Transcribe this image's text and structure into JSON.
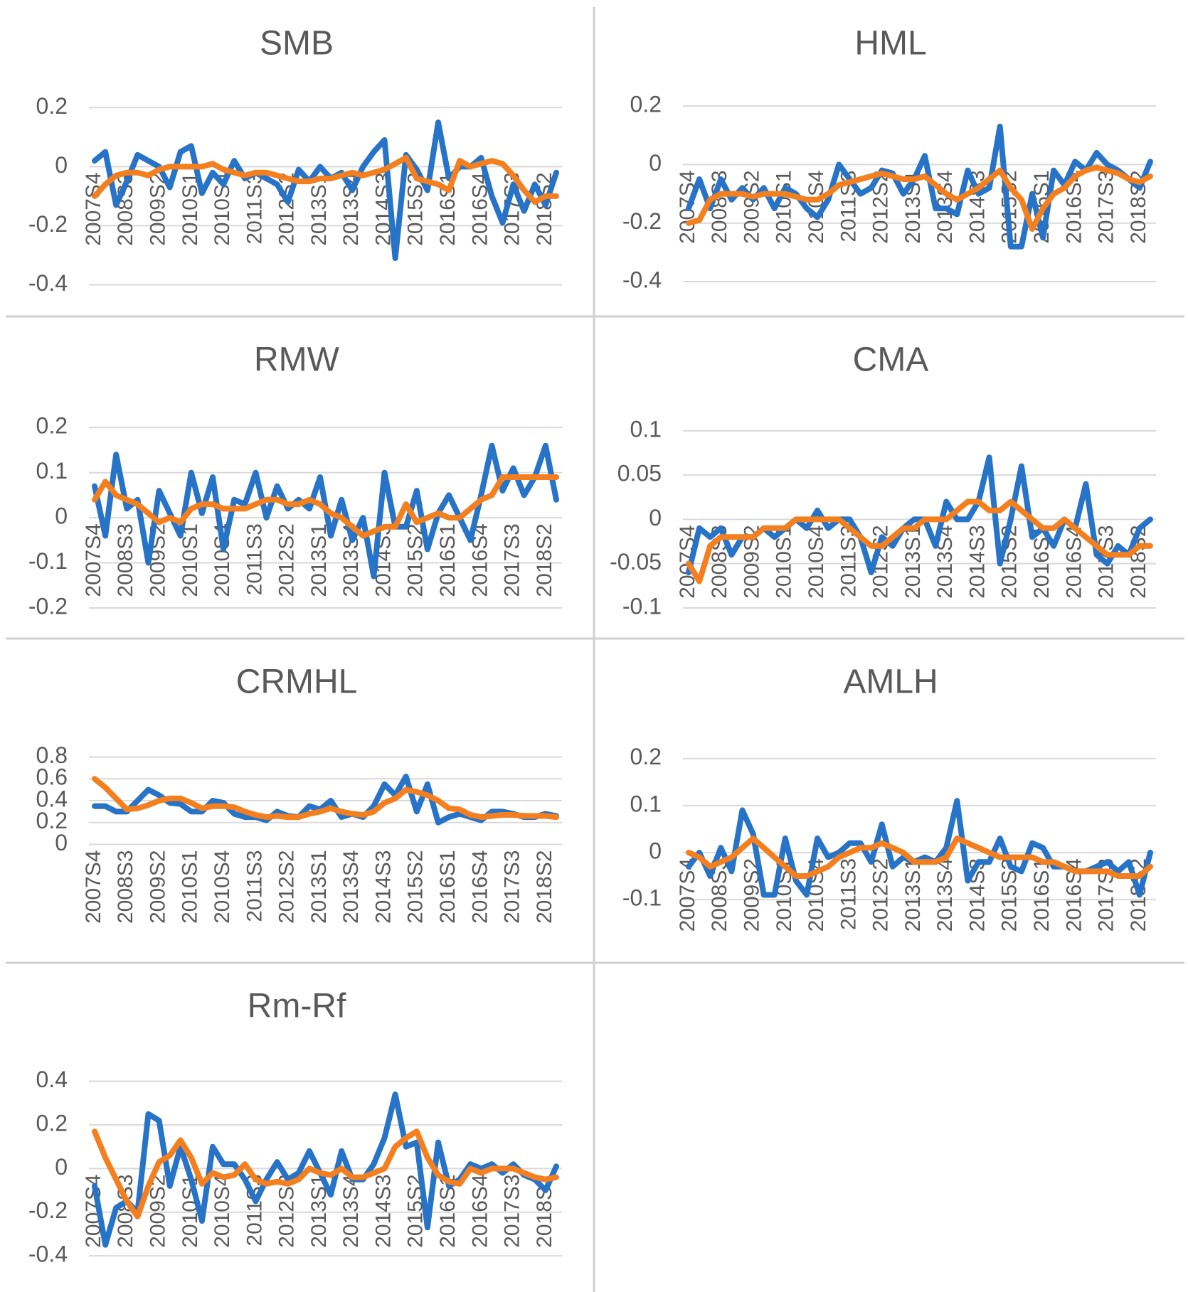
{
  "chart_data": [
    {
      "type": "line",
      "title": "SMB",
      "categories": [
        "2007S4",
        null,
        null,
        "2008S3",
        null,
        null,
        "2009S2",
        null,
        null,
        "2010S1",
        null,
        null,
        "2010S4",
        null,
        null,
        "2011S3",
        null,
        null,
        "2012S2",
        null,
        null,
        "2013S1",
        null,
        null,
        "2013S4",
        null,
        null,
        "2014S3",
        null,
        null,
        "2015S2",
        null,
        null,
        "2016S1",
        null,
        null,
        "2016S4",
        null,
        null,
        "2017S3",
        null,
        null,
        "2018S2",
        null
      ],
      "series": [
        {
          "color": "#2673c8",
          "values": [
            0.02,
            0.05,
            -0.13,
            -0.05,
            0.04,
            0.02,
            0.0,
            -0.07,
            0.05,
            0.07,
            -0.09,
            -0.02,
            -0.06,
            0.02,
            -0.04,
            -0.02,
            -0.04,
            -0.06,
            -0.12,
            -0.01,
            -0.05,
            0.0,
            -0.04,
            -0.02,
            -0.08,
            0.0,
            0.05,
            0.09,
            -0.31,
            0.04,
            -0.01,
            -0.08,
            0.15,
            -0.04,
            0.0,
            0.0,
            0.03,
            -0.1,
            -0.19,
            -0.06,
            -0.15,
            -0.06,
            -0.13,
            -0.02
          ]
        },
        {
          "color": "#f47f1f",
          "values": [
            -0.1,
            -0.06,
            -0.03,
            -0.02,
            -0.02,
            -0.03,
            -0.01,
            0.0,
            0.0,
            0.0,
            0.0,
            0.01,
            -0.01,
            -0.02,
            -0.03,
            -0.02,
            -0.02,
            -0.03,
            -0.04,
            -0.05,
            -0.05,
            -0.04,
            -0.04,
            -0.03,
            -0.02,
            -0.03,
            -0.02,
            -0.01,
            0.01,
            0.03,
            -0.04,
            -0.05,
            -0.06,
            -0.08,
            0.02,
            0.0,
            0.01,
            0.02,
            0.01,
            -0.03,
            -0.08,
            -0.12,
            -0.1,
            -0.1
          ]
        }
      ],
      "ylim": [
        -0.4,
        0.2
      ],
      "yticks": [
        -0.4,
        -0.2,
        0,
        0.2
      ],
      "grid": true
    },
    {
      "type": "line",
      "title": "HML",
      "categories": [
        "2007S4",
        null,
        null,
        "2008S3",
        null,
        null,
        "2009S2",
        null,
        null,
        "2010S1",
        null,
        null,
        "2010S4",
        null,
        null,
        "2011S3",
        null,
        null,
        "2012S2",
        null,
        null,
        "2013S1",
        null,
        null,
        "2013S4",
        null,
        null,
        "2014S3",
        null,
        null,
        "2015S2",
        null,
        null,
        "2016S1",
        null,
        null,
        "2016S4",
        null,
        null,
        "2017S3",
        null,
        null,
        "2018S2",
        null
      ],
      "series": [
        {
          "color": "#2673c8",
          "values": [
            -0.15,
            -0.05,
            -0.15,
            -0.05,
            -0.12,
            -0.08,
            -0.12,
            -0.08,
            -0.15,
            -0.08,
            -0.1,
            -0.15,
            -0.18,
            -0.12,
            0.0,
            -0.05,
            -0.1,
            -0.08,
            -0.02,
            -0.03,
            -0.1,
            -0.05,
            0.03,
            -0.15,
            -0.15,
            -0.17,
            -0.02,
            -0.1,
            -0.08,
            0.13,
            -0.28,
            -0.28,
            -0.1,
            -0.25,
            -0.02,
            -0.07,
            0.01,
            -0.02,
            0.04,
            0.0,
            -0.02,
            -0.05,
            -0.08,
            0.01
          ]
        },
        {
          "color": "#f47f1f",
          "values": [
            -0.2,
            -0.19,
            -0.12,
            -0.1,
            -0.1,
            -0.1,
            -0.11,
            -0.1,
            -0.1,
            -0.1,
            -0.11,
            -0.12,
            -0.12,
            -0.1,
            -0.07,
            -0.06,
            -0.05,
            -0.04,
            -0.03,
            -0.04,
            -0.05,
            -0.05,
            -0.04,
            -0.07,
            -0.1,
            -0.12,
            -0.1,
            -0.08,
            -0.05,
            -0.02,
            -0.08,
            -0.12,
            -0.22,
            -0.15,
            -0.1,
            -0.08,
            -0.04,
            -0.02,
            -0.01,
            -0.02,
            -0.03,
            -0.05,
            -0.06,
            -0.04
          ]
        }
      ],
      "ylim": [
        -0.4,
        0.2
      ],
      "yticks": [
        -0.4,
        -0.2,
        0,
        0.2
      ],
      "grid": true
    },
    {
      "type": "line",
      "title": "RMW",
      "categories": [
        "2007S4",
        null,
        null,
        "2008S3",
        null,
        null,
        "2009S2",
        null,
        null,
        "2010S1",
        null,
        null,
        "2010S4",
        null,
        null,
        "2011S3",
        null,
        null,
        "2012S2",
        null,
        null,
        "2013S1",
        null,
        null,
        "2013S4",
        null,
        null,
        "2014S3",
        null,
        null,
        "2015S2",
        null,
        null,
        "2016S1",
        null,
        null,
        "2016S4",
        null,
        null,
        "2017S3",
        null,
        null,
        "2018S2",
        null
      ],
      "series": [
        {
          "color": "#2673c8",
          "values": [
            0.07,
            -0.04,
            0.14,
            0.02,
            0.04,
            -0.1,
            0.06,
            0.01,
            -0.04,
            0.1,
            0.01,
            0.09,
            -0.07,
            0.04,
            0.03,
            0.1,
            0.0,
            0.07,
            0.02,
            0.04,
            0.02,
            0.09,
            -0.04,
            0.04,
            -0.05,
            0.0,
            -0.13,
            0.1,
            -0.02,
            -0.02,
            0.06,
            -0.07,
            0.01,
            0.05,
            0.0,
            -0.05,
            0.05,
            0.16,
            0.06,
            0.11,
            0.05,
            0.09,
            0.16,
            0.04
          ]
        },
        {
          "color": "#f47f1f",
          "values": [
            0.04,
            0.08,
            0.05,
            0.04,
            0.03,
            0.01,
            -0.01,
            0.0,
            -0.01,
            0.02,
            0.03,
            0.03,
            0.02,
            0.02,
            0.02,
            0.03,
            0.04,
            0.04,
            0.03,
            0.03,
            0.04,
            0.03,
            0.01,
            0.0,
            -0.02,
            -0.04,
            -0.03,
            -0.02,
            -0.02,
            0.03,
            -0.01,
            0.0,
            0.01,
            0.0,
            0.0,
            0.02,
            0.04,
            0.05,
            0.09,
            0.09,
            0.09,
            0.09,
            0.09,
            0.09
          ]
        }
      ],
      "ylim": [
        -0.2,
        0.2
      ],
      "yticks": [
        -0.2,
        -0.1,
        0,
        0.1,
        0.2
      ],
      "grid": true
    },
    {
      "type": "line",
      "title": "CMA",
      "categories": [
        "2007S4",
        null,
        null,
        "2008S3",
        null,
        null,
        "2009S2",
        null,
        null,
        "2010S1",
        null,
        null,
        "2010S4",
        null,
        null,
        "2011S3",
        null,
        null,
        "2012S2",
        null,
        null,
        "2013S1",
        null,
        null,
        "2013S4",
        null,
        null,
        "2014S3",
        null,
        null,
        "2015S2",
        null,
        null,
        "2016S1",
        null,
        null,
        "2016S4",
        null,
        null,
        "2017S3",
        null,
        null,
        "2018S2",
        null
      ],
      "series": [
        {
          "color": "#2673c8",
          "values": [
            -0.06,
            -0.01,
            -0.02,
            -0.01,
            -0.04,
            -0.02,
            -0.02,
            -0.01,
            -0.02,
            -0.01,
            0.0,
            -0.01,
            0.01,
            -0.01,
            0.0,
            0.0,
            -0.02,
            -0.06,
            -0.02,
            -0.03,
            -0.01,
            0.0,
            0.0,
            -0.03,
            0.02,
            0.0,
            0.0,
            0.02,
            0.07,
            -0.05,
            0.0,
            0.06,
            -0.02,
            -0.01,
            -0.03,
            0.0,
            -0.01,
            0.04,
            -0.04,
            -0.05,
            -0.03,
            -0.04,
            -0.01,
            0.0
          ]
        },
        {
          "color": "#f47f1f",
          "values": [
            -0.05,
            -0.07,
            -0.03,
            -0.02,
            -0.02,
            -0.02,
            -0.02,
            -0.01,
            -0.01,
            -0.01,
            0.0,
            0.0,
            0.0,
            0.0,
            0.0,
            -0.01,
            -0.02,
            -0.03,
            -0.03,
            -0.02,
            -0.01,
            -0.01,
            0.0,
            0.0,
            0.0,
            0.01,
            0.02,
            0.02,
            0.01,
            0.01,
            0.02,
            0.01,
            0.0,
            -0.01,
            -0.01,
            0.0,
            -0.01,
            -0.02,
            -0.03,
            -0.04,
            -0.04,
            -0.04,
            -0.03,
            -0.03
          ]
        }
      ],
      "ylim": [
        -0.1,
        0.1
      ],
      "yticks": [
        -0.1,
        -0.05,
        0,
        0.05,
        0.1
      ],
      "grid": true
    },
    {
      "type": "line",
      "title": "CRMHL",
      "categories": [
        "2007S4",
        null,
        null,
        "2008S3",
        null,
        null,
        "2009S2",
        null,
        null,
        "2010S1",
        null,
        null,
        "2010S4",
        null,
        null,
        "2011S3",
        null,
        null,
        "2012S2",
        null,
        null,
        "2013S1",
        null,
        null,
        "2013S4",
        null,
        null,
        "2014S3",
        null,
        null,
        "2015S2",
        null,
        null,
        "2016S1",
        null,
        null,
        "2016S4",
        null,
        null,
        "2017S3",
        null,
        null,
        "2018S2",
        null
      ],
      "series": [
        {
          "color": "#2673c8",
          "values": [
            0.35,
            0.35,
            0.3,
            0.3,
            0.4,
            0.5,
            0.45,
            0.38,
            0.37,
            0.3,
            0.3,
            0.4,
            0.38,
            0.28,
            0.25,
            0.25,
            0.22,
            0.3,
            0.26,
            0.25,
            0.35,
            0.32,
            0.4,
            0.25,
            0.28,
            0.25,
            0.35,
            0.55,
            0.45,
            0.62,
            0.3,
            0.55,
            0.2,
            0.25,
            0.28,
            0.25,
            0.22,
            0.3,
            0.3,
            0.28,
            0.25,
            0.25,
            0.28,
            0.26
          ]
        },
        {
          "color": "#f47f1f",
          "values": [
            0.6,
            0.52,
            0.42,
            0.32,
            0.33,
            0.36,
            0.4,
            0.42,
            0.42,
            0.38,
            0.33,
            0.35,
            0.35,
            0.34,
            0.3,
            0.27,
            0.25,
            0.26,
            0.25,
            0.25,
            0.28,
            0.3,
            0.33,
            0.3,
            0.28,
            0.27,
            0.3,
            0.38,
            0.42,
            0.5,
            0.48,
            0.45,
            0.4,
            0.33,
            0.32,
            0.27,
            0.25,
            0.26,
            0.27,
            0.27,
            0.26,
            0.26,
            0.26,
            0.25
          ]
        }
      ],
      "ylim": [
        0,
        0.8
      ],
      "yticks": [
        0,
        0.2,
        0.4,
        0.6,
        0.8
      ],
      "grid": true
    },
    {
      "type": "line",
      "title": "AMLH",
      "categories": [
        "2007S4",
        null,
        null,
        "2008S3",
        null,
        null,
        "2009S2",
        null,
        null,
        "2010S1",
        null,
        null,
        "2010S4",
        null,
        null,
        "2011S3",
        null,
        null,
        "2012S2",
        null,
        null,
        "2013S1",
        null,
        null,
        "2013S4",
        null,
        null,
        "2014S3",
        null,
        null,
        "2015S2",
        null,
        null,
        "2016S1",
        null,
        null,
        "2016S4",
        null,
        null,
        "2017S3",
        null,
        null,
        "2018S2",
        null
      ],
      "series": [
        {
          "color": "#2673c8",
          "values": [
            -0.03,
            0.0,
            -0.05,
            0.01,
            -0.04,
            0.09,
            0.04,
            -0.09,
            -0.09,
            0.03,
            -0.06,
            -0.09,
            0.03,
            -0.01,
            0.0,
            0.02,
            0.02,
            -0.02,
            0.06,
            -0.03,
            -0.01,
            -0.02,
            -0.01,
            -0.02,
            0.01,
            0.11,
            -0.06,
            -0.02,
            -0.02,
            0.03,
            -0.03,
            -0.04,
            0.02,
            0.01,
            -0.03,
            -0.03,
            -0.04,
            -0.04,
            -0.03,
            -0.02,
            -0.04,
            -0.02,
            -0.09,
            0.0
          ]
        },
        {
          "color": "#f47f1f",
          "values": [
            0.0,
            -0.01,
            -0.03,
            -0.02,
            -0.01,
            0.01,
            0.03,
            0.01,
            -0.01,
            -0.03,
            -0.05,
            -0.05,
            -0.04,
            -0.03,
            -0.01,
            0.0,
            0.01,
            0.01,
            0.02,
            0.01,
            0.0,
            -0.02,
            -0.02,
            -0.02,
            -0.01,
            0.03,
            0.02,
            0.01,
            0.0,
            -0.01,
            -0.01,
            -0.01,
            -0.01,
            -0.02,
            -0.02,
            -0.03,
            -0.04,
            -0.04,
            -0.04,
            -0.04,
            -0.05,
            -0.05,
            -0.05,
            -0.03
          ]
        }
      ],
      "ylim": [
        -0.1,
        0.2
      ],
      "yticks": [
        -0.1,
        0,
        0.1,
        0.2
      ],
      "grid": true
    },
    {
      "type": "line",
      "title": "Rm-Rf",
      "categories": [
        "2007S4",
        null,
        null,
        "2008S3",
        null,
        null,
        "2009S2",
        null,
        null,
        "2010S1",
        null,
        null,
        "2010S4",
        null,
        null,
        "2011S3",
        null,
        null,
        "2012S2",
        null,
        null,
        "2013S1",
        null,
        null,
        "2013S4",
        null,
        null,
        "2014S3",
        null,
        null,
        "2015S2",
        null,
        null,
        "2016S1",
        null,
        null,
        "2016S4",
        null,
        null,
        "2017S3",
        null,
        null,
        "2018S2",
        null
      ],
      "series": [
        {
          "color": "#2673c8",
          "values": [
            -0.08,
            -0.35,
            -0.18,
            -0.15,
            -0.2,
            0.25,
            0.22,
            -0.08,
            0.1,
            -0.05,
            -0.24,
            0.1,
            0.02,
            0.02,
            -0.05,
            -0.15,
            -0.05,
            0.03,
            -0.05,
            -0.02,
            0.08,
            -0.02,
            -0.12,
            0.08,
            -0.05,
            -0.05,
            0.02,
            0.14,
            0.34,
            0.1,
            0.12,
            -0.27,
            0.12,
            -0.08,
            -0.05,
            0.02,
            0.0,
            0.02,
            -0.02,
            0.02,
            -0.03,
            -0.05,
            -0.1,
            0.01
          ]
        },
        {
          "color": "#f47f1f",
          "values": [
            0.17,
            0.05,
            -0.05,
            -0.15,
            -0.22,
            -0.08,
            0.03,
            0.06,
            0.13,
            0.05,
            -0.07,
            -0.02,
            -0.04,
            -0.03,
            0.02,
            -0.05,
            -0.07,
            -0.06,
            -0.07,
            -0.05,
            0.0,
            -0.02,
            -0.03,
            0.0,
            -0.04,
            -0.04,
            -0.02,
            0.0,
            0.1,
            0.14,
            0.17,
            0.05,
            -0.03,
            -0.06,
            -0.07,
            0.0,
            -0.02,
            0.0,
            0.0,
            0.0,
            -0.02,
            -0.04,
            -0.05,
            -0.04
          ]
        }
      ],
      "ylim": [
        -0.4,
        0.4
      ],
      "yticks": [
        -0.4,
        -0.2,
        0,
        0.2,
        0.4
      ],
      "grid": true
    }
  ]
}
